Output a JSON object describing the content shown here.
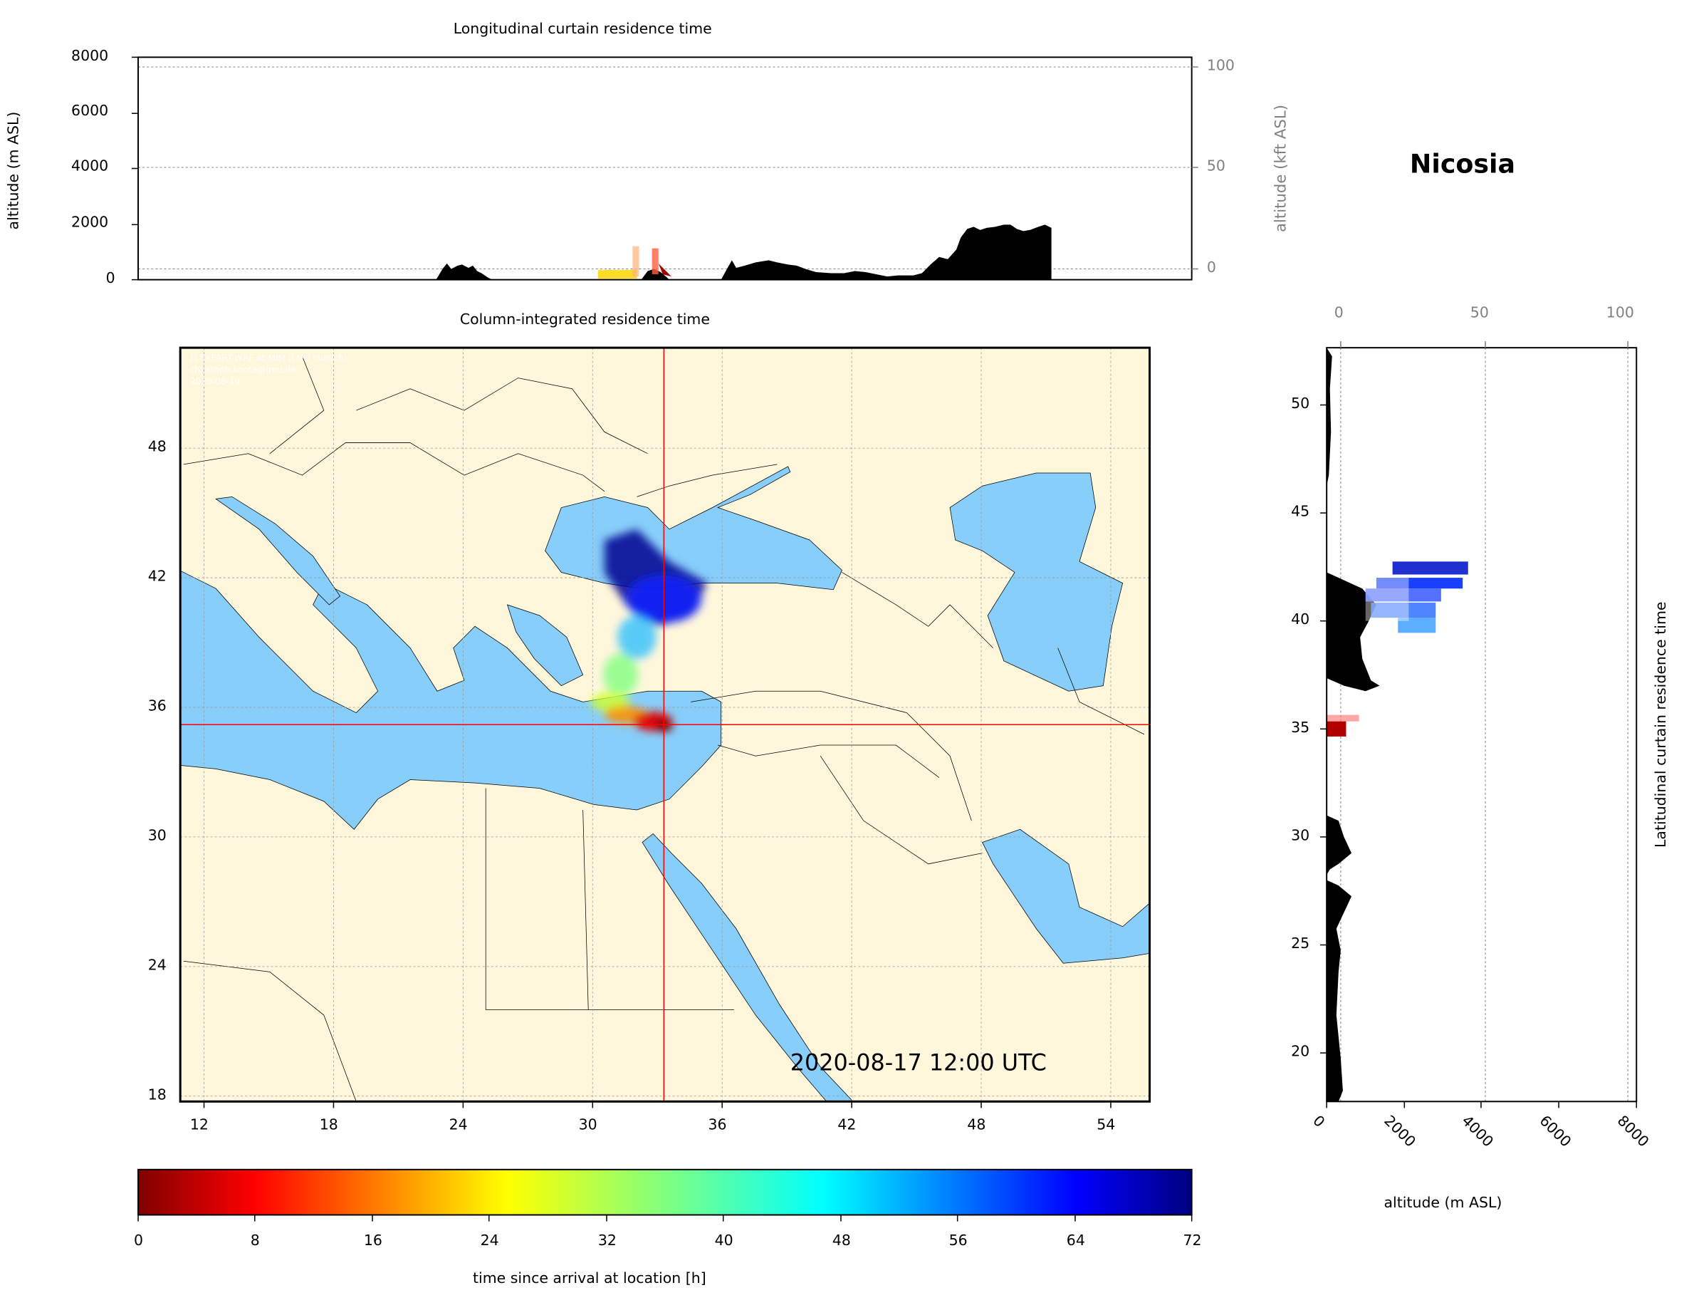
{
  "station": "Nicosia",
  "top_panel": {
    "title": "Longitudinal curtain residence time",
    "ylabel_left": "altitude (m ASL)",
    "ylabel_right": "altitude (kft ASL)",
    "yticks_left": [
      "0",
      "2000",
      "4000",
      "6000",
      "8000"
    ],
    "yticks_right": [
      "0",
      "50",
      "100"
    ]
  },
  "map_panel": {
    "title": "Column-integrated residence time",
    "credit_lines": [
      "FLEXPART-WRF at MIM (LMU Munich)",
      "christoph.knote@lmu.de",
      "2020-08-19"
    ],
    "timestamp": "2020-08-17 12:00 UTC",
    "xticks": [
      "12",
      "18",
      "24",
      "30",
      "36",
      "42",
      "48",
      "54"
    ],
    "yticks": [
      "18",
      "24",
      "30",
      "36",
      "42",
      "48"
    ],
    "colors": {
      "land": "#fff7dc",
      "sea": "#87cefa",
      "crosshair": "#ff0000"
    }
  },
  "right_panel": {
    "title": "Latitudinal curtain residence time",
    "xlabel": "altitude (m ASL)",
    "xticks_bottom": [
      "0",
      "2000",
      "4000",
      "6000",
      "8000"
    ],
    "xticks_top": [
      "0",
      "50",
      "100"
    ],
    "yticks": [
      "20",
      "25",
      "30",
      "35",
      "40",
      "45",
      "50"
    ]
  },
  "colorbar": {
    "label": "time since arrival at location [h]",
    "ticks": [
      "0",
      "8",
      "16",
      "24",
      "32",
      "40",
      "48",
      "56",
      "64",
      "72"
    ],
    "colormap": "jet_r"
  }
}
